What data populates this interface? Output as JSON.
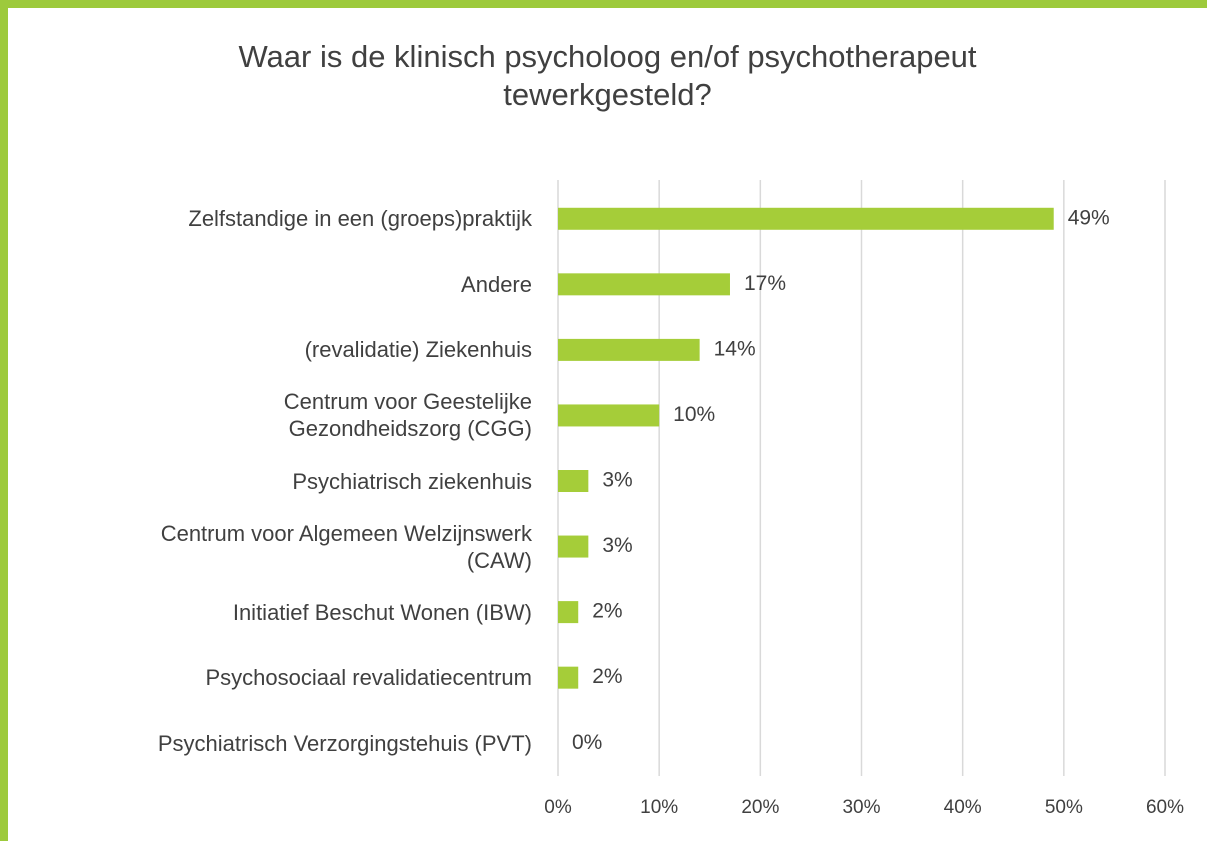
{
  "chart_data": {
    "type": "bar",
    "orientation": "horizontal",
    "title": "Waar is de klinisch psycholoog en/of psychotherapeut\ntewerkgesteld?",
    "categories": [
      "Zelfstandige in een (groeps)praktijk",
      "Andere",
      "(revalidatie) Ziekenhuis",
      "Centrum voor Geestelijke\nGezondheidszorg (CGG)",
      "Psychiatrisch ziekenhuis",
      "Centrum voor Algemeen Welzijnswerk\n(CAW)",
      "Initiatief Beschut Wonen (IBW)",
      "Psychosociaal revalidatiecentrum",
      "Psychiatrisch Verzorgingstehuis (PVT)"
    ],
    "values": [
      49,
      17,
      14,
      10,
      3,
      3,
      2,
      2,
      0
    ],
    "value_labels": [
      "49%",
      "17%",
      "14%",
      "10%",
      "3%",
      "3%",
      "2%",
      "2%",
      "0%"
    ],
    "color": "#a5cd39",
    "xlim": [
      0,
      60
    ],
    "xticks": [
      {
        "value": 0,
        "label": "0%"
      },
      {
        "value": 10,
        "label": "10%"
      },
      {
        "value": 20,
        "label": "20%"
      },
      {
        "value": 30,
        "label": "30%"
      },
      {
        "value": 40,
        "label": "40%"
      },
      {
        "value": 50,
        "label": "50%"
      },
      {
        "value": 60,
        "label": "60%"
      }
    ],
    "grid": true
  }
}
